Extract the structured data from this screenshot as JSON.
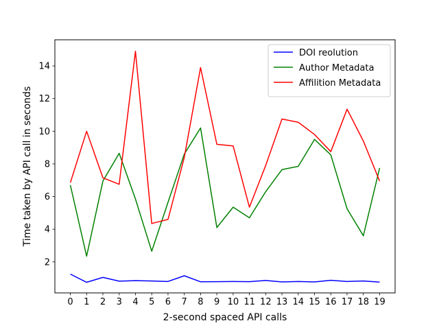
{
  "chart_data": {
    "type": "line",
    "title": "",
    "xlabel": "2-second spaced API calls",
    "ylabel": "Time taken by API call in seconds",
    "x": [
      0,
      1,
      2,
      3,
      4,
      5,
      6,
      7,
      8,
      9,
      10,
      11,
      12,
      13,
      14,
      15,
      16,
      17,
      18,
      19
    ],
    "xlim": [
      -0.95,
      19.95
    ],
    "ylim": [
      0.1,
      15.6
    ],
    "yticks": [
      2,
      4,
      6,
      8,
      10,
      12,
      14
    ],
    "legend_position": "top-right",
    "series": [
      {
        "name": "DOI reolution",
        "color": "#0000ff",
        "values": [
          1.25,
          0.75,
          1.05,
          0.82,
          0.85,
          0.83,
          0.8,
          1.15,
          0.78,
          0.79,
          0.8,
          0.79,
          0.86,
          0.77,
          0.8,
          0.77,
          0.87,
          0.8,
          0.83,
          0.76
        ]
      },
      {
        "name": "Author Metadata",
        "color": "#008000",
        "values": [
          6.7,
          2.35,
          6.95,
          8.65,
          5.85,
          2.65,
          5.65,
          8.6,
          10.2,
          4.1,
          5.35,
          4.7,
          6.3,
          7.65,
          7.85,
          9.5,
          8.55,
          5.25,
          3.6,
          7.75
        ]
      },
      {
        "name": "Affilition Metadata",
        "color": "#ff0000",
        "values": [
          6.85,
          10.0,
          7.15,
          6.75,
          14.9,
          4.35,
          4.6,
          8.4,
          13.9,
          9.2,
          9.1,
          5.35,
          7.9,
          10.75,
          10.55,
          9.8,
          8.75,
          11.35,
          9.4,
          6.95
        ]
      }
    ]
  }
}
